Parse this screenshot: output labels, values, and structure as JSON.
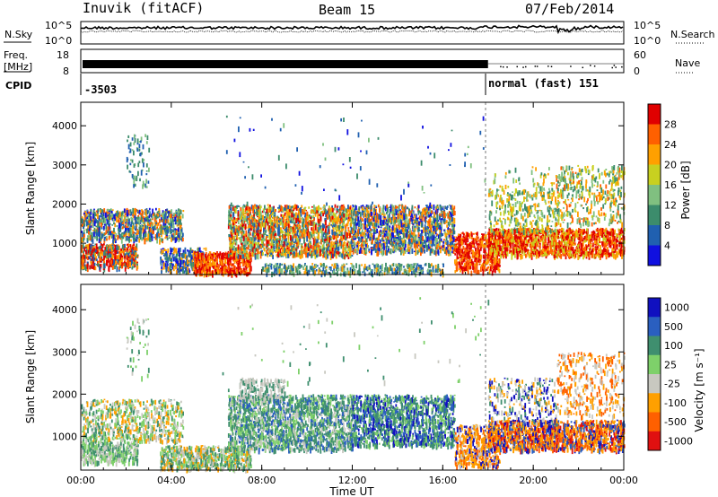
{
  "header": {
    "station": "Inuvik (fitACF)",
    "beam": "Beam 15",
    "date": "07/Feb/2014"
  },
  "ancillary": {
    "nsky_label": "N.Sky",
    "nsky_top_tick": "10^5",
    "nsky_bottom_tick": "10^0",
    "nsearch_label": "N.Search",
    "nsearch_top_tick": "10^5",
    "nsearch_bottom_tick": "10^0",
    "freq_label_line1": "Freq.",
    "freq_label_line2": "[MHz]",
    "freq_ticks": [
      "18",
      "8"
    ],
    "nave_label": "Nave",
    "nave_ticks": [
      "60",
      "0"
    ],
    "cpid_label": "CPID",
    "cpid_first": "-3503",
    "cpid_second": "normal (fast) 151"
  },
  "colors": {
    "power_scale": [
      "#1010e0",
      "#2060b0",
      "#3c8c6c",
      "#80c080",
      "#c8d020",
      "#ffa000",
      "#ff6000",
      "#e00000"
    ],
    "velocity_scale": [
      "#1010c0",
      "#2a5fc0",
      "#3f8f6f",
      "#7ed06a",
      "#c8c8c0",
      "#ffa000",
      "#ff6000",
      "#e01010"
    ]
  },
  "chart_data": [
    {
      "type": "heatmap",
      "title": "Power",
      "xlabel": "",
      "ylabel": "Slant Range [km]",
      "x_ticks": [
        "00:00",
        "04:00",
        "08:00",
        "12:00",
        "16:00",
        "20:00",
        "00:00"
      ],
      "y_ticks": [
        "1000",
        "2000",
        "3000",
        "4000"
      ],
      "ylim": [
        200,
        4600
      ],
      "colorbar_label": "Power [dB]",
      "colorbar_ticks": [
        "4",
        "8",
        "12",
        "16",
        "20",
        "24",
        "28"
      ],
      "mode_change_time_h": 18.0
    },
    {
      "type": "heatmap",
      "title": "Velocity",
      "xlabel": "Time UT",
      "ylabel": "Slant Range [km]",
      "x_ticks": [
        "00:00",
        "04:00",
        "08:00",
        "12:00",
        "16:00",
        "20:00",
        "00:00"
      ],
      "y_ticks": [
        "1000",
        "2000",
        "3000",
        "4000"
      ],
      "ylim": [
        200,
        4600
      ],
      "colorbar_label": "Velocity [m s⁻¹]",
      "colorbar_ticks": [
        "1000",
        "500",
        "100",
        "25",
        "-25",
        "-100",
        "-500",
        "-1000"
      ],
      "mode_change_time_h": 18.0
    }
  ]
}
